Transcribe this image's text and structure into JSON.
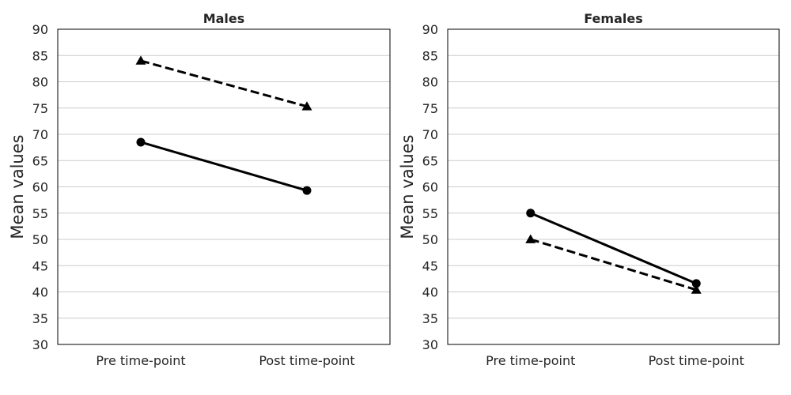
{
  "chart_data": [
    {
      "type": "line",
      "title": "Males",
      "ylabel": "Mean values",
      "xlabel": "",
      "categories": [
        "Pre time-point",
        "Post time-point"
      ],
      "ylim": [
        30,
        90
      ],
      "yticks": [
        30,
        35,
        40,
        45,
        50,
        55,
        60,
        65,
        70,
        75,
        80,
        85,
        90
      ],
      "grid": "horizontal",
      "series": [
        {
          "values": [
            68.5,
            59.3
          ],
          "line_style": "solid",
          "marker": "circle",
          "color": "#000000"
        },
        {
          "values": [
            84.0,
            75.3
          ],
          "line_style": "dashed",
          "marker": "triangle",
          "color": "#000000"
        }
      ]
    },
    {
      "type": "line",
      "title": "Females",
      "ylabel": "Mean values",
      "xlabel": "",
      "categories": [
        "Pre time-point",
        "Post time-point"
      ],
      "ylim": [
        30,
        90
      ],
      "yticks": [
        30,
        35,
        40,
        45,
        50,
        55,
        60,
        65,
        70,
        75,
        80,
        85,
        90
      ],
      "grid": "horizontal",
      "series": [
        {
          "values": [
            55.0,
            41.6
          ],
          "line_style": "solid",
          "marker": "circle",
          "color": "#000000"
        },
        {
          "values": [
            50.0,
            40.4
          ],
          "line_style": "dashed",
          "marker": "triangle",
          "color": "#000000"
        }
      ]
    }
  ]
}
